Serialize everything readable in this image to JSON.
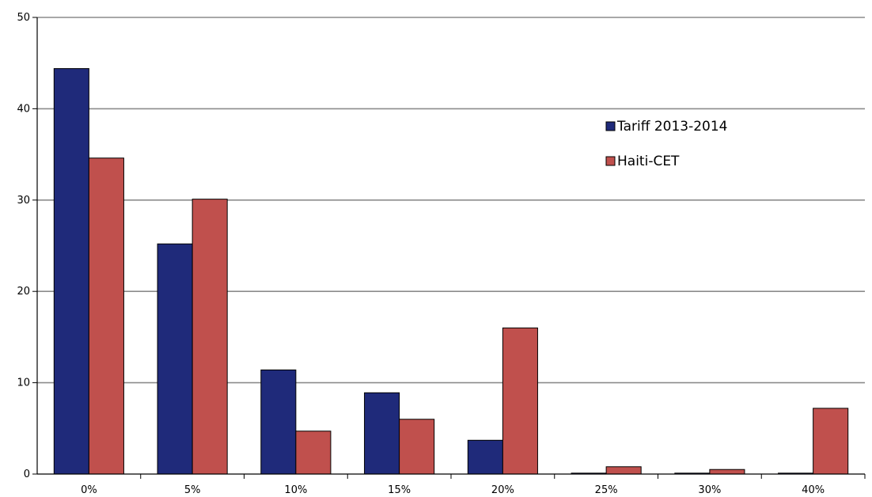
{
  "chart_data": {
    "type": "bar",
    "categories": [
      "0%",
      "5%",
      "10%",
      "15%",
      "20%",
      "25%",
      "30%",
      "40%"
    ],
    "series": [
      {
        "name": "Tariff 2013-2014",
        "values": [
          44.4,
          25.2,
          11.4,
          8.9,
          3.7,
          0.1,
          0.1,
          0.1
        ],
        "color": "#1f2a7a"
      },
      {
        "name": "Haiti-CET",
        "values": [
          34.6,
          30.1,
          4.7,
          6.0,
          16.0,
          0.8,
          0.5,
          7.2
        ],
        "color": "#c0504d"
      }
    ],
    "ylim": [
      0,
      50
    ],
    "yticks": [
      0,
      10,
      20,
      30,
      40,
      50
    ],
    "grid": true,
    "legend_position": "top-right",
    "title": "",
    "xlabel": "",
    "ylabel": ""
  }
}
